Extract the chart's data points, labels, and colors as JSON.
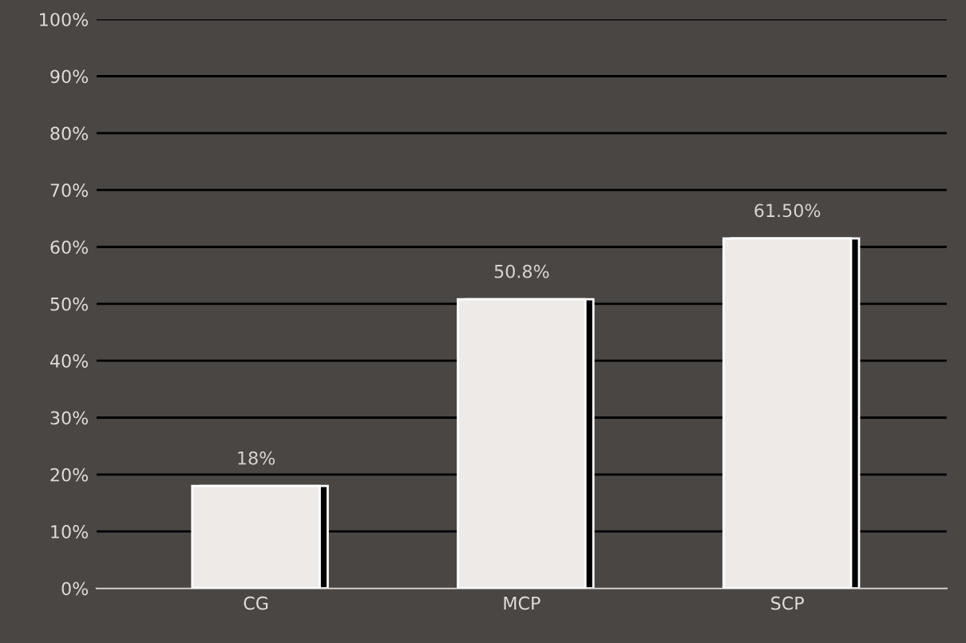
{
  "chart_data": {
    "type": "bar",
    "categories": [
      "CG",
      "MCP",
      "SCP"
    ],
    "values": [
      18,
      50.8,
      61.5
    ],
    "color": "#eeeae8",
    "value_labels": [
      "18%",
      "50.8%",
      "61.50%"
    ],
    "ylim": [
      0,
      100
    ],
    "yticks": [
      {
        "value": 0,
        "label": "0%"
      },
      {
        "value": 10,
        "label": "10%"
      },
      {
        "value": 20,
        "label": "20%"
      },
      {
        "value": 30,
        "label": "30%"
      },
      {
        "value": 40,
        "label": "40%"
      },
      {
        "value": 50,
        "label": "50%"
      },
      {
        "value": 60,
        "label": "60%"
      },
      {
        "value": 70,
        "label": "70%"
      },
      {
        "value": 80,
        "label": "80%"
      },
      {
        "value": 90,
        "label": "90%"
      },
      {
        "value": 100,
        "label": "100%"
      }
    ],
    "grid": "y",
    "legend": false
  }
}
